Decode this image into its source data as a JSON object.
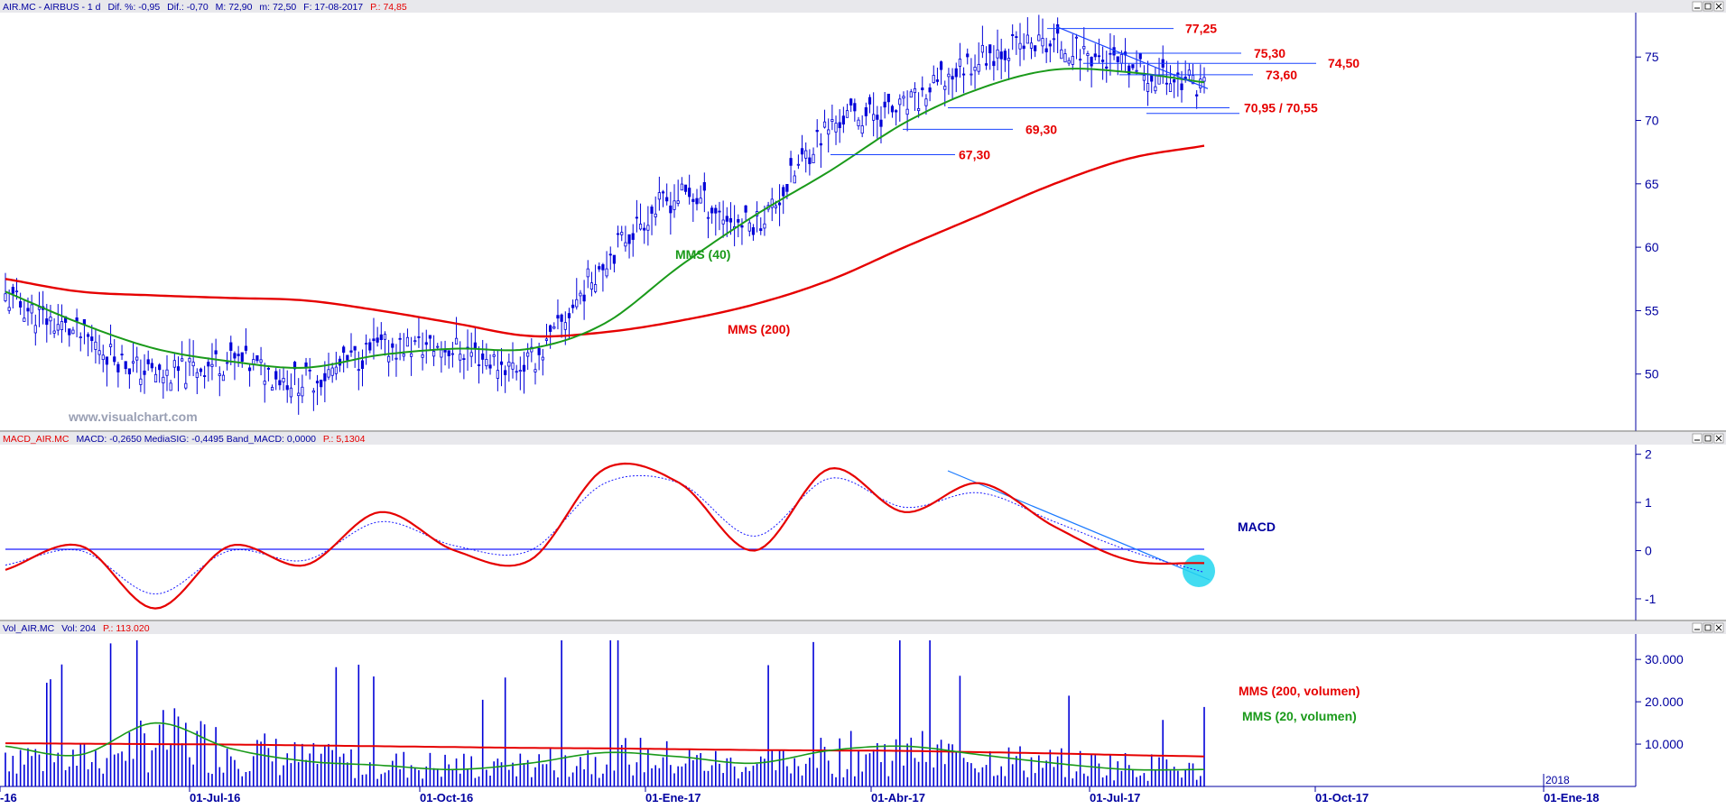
{
  "colors": {
    "price": "#0000d8",
    "mms40": "#1a9a1a",
    "mms200": "#e60000",
    "label_red": "#e60000",
    "level_line": "#1a44ff",
    "macd": "#e60000",
    "signal": "#1a1aff",
    "volume": "#0000d8",
    "vol_mms200": "#e60000",
    "vol_mms20": "#1a9a1a",
    "axis": "#0000a0",
    "highlight": "#22d6ee",
    "title_blue": "#0000a0",
    "watermark": "#9aa0b4"
  },
  "price_panel": {
    "header_symbol": "AIR.MC - AIRBUS - 1 d",
    "header_dif_pct": "Dif. %: -0,95",
    "header_dif": "Dif.: -0,70",
    "header_m": "M: 72,90",
    "header_low": "m: 72,50",
    "header_date": "F: 17-08-2017",
    "header_p": "P.: 74,85",
    "watermark": "www.visualchart.com",
    "mms40_label": "MMS (40)",
    "mms200_label": "MMS (200)",
    "y_ticks": [
      "75",
      "70",
      "65",
      "60",
      "55",
      "50"
    ]
  },
  "macd_panel": {
    "header_name": "MACD_AIR.MC",
    "header_values": "MACD: -0,2650  MediaSIG: -0,4495  Band_MACD: 0,0000",
    "header_p": "P.: 5,1304",
    "label": "MACD",
    "y_ticks": [
      "2",
      "1",
      "0",
      "-1"
    ]
  },
  "volume_panel": {
    "header_name": "Vol_AIR.MC",
    "header_vol": "Vol: 204",
    "header_p": "P.: 113.020",
    "mms200_label": "MMS (200, volumen)",
    "mms20_label": "MMS (20, volumen)",
    "y_ticks": [
      "30.000",
      "20.000",
      "10.000"
    ]
  },
  "x_axis": {
    "ticks": [
      "-16",
      "01-Jul-16",
      "01-Oct-16",
      "01-Ene-17",
      "01-Abr-17",
      "01-Jul-17",
      "01-Oct-17",
      "01-Ene-18"
    ],
    "year_marker": "2018"
  },
  "chart_data": [
    {
      "type": "line",
      "title": "AIR.MC - AIRBUS - 1 d",
      "x": [
        "2016-04",
        "2016-05",
        "2016-06",
        "2016-07",
        "2016-08",
        "2016-09",
        "2016-10",
        "2016-11",
        "2016-12",
        "2017-01",
        "2017-02",
        "2017-03",
        "2017-04",
        "2017-05",
        "2017-06",
        "2017-07",
        "2017-08"
      ],
      "series": [
        {
          "name": "Precio",
          "values": [
            56,
            53,
            50,
            51,
            49.5,
            52,
            52,
            51,
            59,
            64,
            62,
            69.5,
            71,
            75,
            76,
            74,
            72.9
          ]
        },
        {
          "name": "MMS (40)",
          "values": [
            56.5,
            54,
            52,
            51,
            50.5,
            51.5,
            52,
            52,
            54,
            58.5,
            62.5,
            66,
            69.8,
            72.5,
            74,
            73.8,
            73
          ]
        },
        {
          "name": "MMS (200)",
          "values": [
            57.5,
            56.5,
            56.2,
            56,
            55.8,
            55,
            54,
            53,
            53.3,
            54.2,
            55.5,
            57.4,
            60,
            62.5,
            65,
            67,
            68
          ]
        }
      ],
      "levels": [
        "77,25",
        "75,30",
        "74,50",
        "73,60",
        "70,95 / 70,55",
        "69,30",
        "67,30"
      ],
      "y_ticks": [
        75,
        70,
        65,
        60,
        55,
        50
      ],
      "ylim": [
        45.5,
        78.5
      ]
    },
    {
      "type": "line",
      "title": "MACD_AIR.MC",
      "x": [
        "2016-04",
        "2016-05",
        "2016-06",
        "2016-07",
        "2016-08",
        "2016-09",
        "2016-10",
        "2016-11",
        "2016-12",
        "2017-01",
        "2017-02",
        "2017-03",
        "2017-04",
        "2017-05",
        "2017-06",
        "2017-07",
        "2017-08"
      ],
      "series": [
        {
          "name": "MACD",
          "values": [
            -0.4,
            0.1,
            -1.2,
            0.1,
            -0.3,
            0.8,
            0,
            -0.2,
            1.7,
            1.4,
            0,
            1.7,
            0.8,
            1.4,
            0.5,
            -0.2,
            -0.26
          ]
        },
        {
          "name": "MediaSIG",
          "values": [
            -0.3,
            0,
            -0.9,
            0,
            -0.2,
            0.6,
            0.1,
            0,
            1.4,
            1.4,
            0.3,
            1.5,
            0.9,
            1.2,
            0.6,
            0,
            -0.45
          ]
        }
      ],
      "y_ticks": [
        2,
        1,
        0,
        -1
      ],
      "ylim": [
        -1.45,
        2.2
      ]
    },
    {
      "type": "bar",
      "title": "Vol_AIR.MC",
      "x": [
        "2016-04",
        "2016-05",
        "2016-06",
        "2016-07",
        "2016-08",
        "2016-09",
        "2016-10",
        "2016-11",
        "2016-12",
        "2017-01",
        "2017-02",
        "2017-03",
        "2017-04",
        "2017-05",
        "2017-06",
        "2017-07",
        "2017-08"
      ],
      "series": [
        {
          "name": "Vol",
          "values": [
            9000,
            7000,
            12000,
            10000,
            7000,
            6000,
            5500,
            6000,
            8000,
            7000,
            5500,
            8000,
            9000,
            7500,
            6000,
            5500,
            4000
          ]
        },
        {
          "name": "MMS (200, volumen)",
          "values": [
            10200,
            10100,
            10000,
            9900,
            9700,
            9500,
            9300,
            9100,
            9000,
            8800,
            8600,
            8500,
            8400,
            8100,
            7800,
            7400,
            7100
          ]
        },
        {
          "name": "MMS (20, volumen)",
          "values": [
            9500,
            7500,
            15000,
            9000,
            6000,
            5000,
            4000,
            5500,
            8000,
            7000,
            5500,
            8500,
            9500,
            7500,
            5500,
            4000,
            4000
          ]
        }
      ],
      "y_ticks": [
        30000,
        20000,
        10000
      ],
      "ylim": [
        0,
        36000
      ]
    }
  ]
}
